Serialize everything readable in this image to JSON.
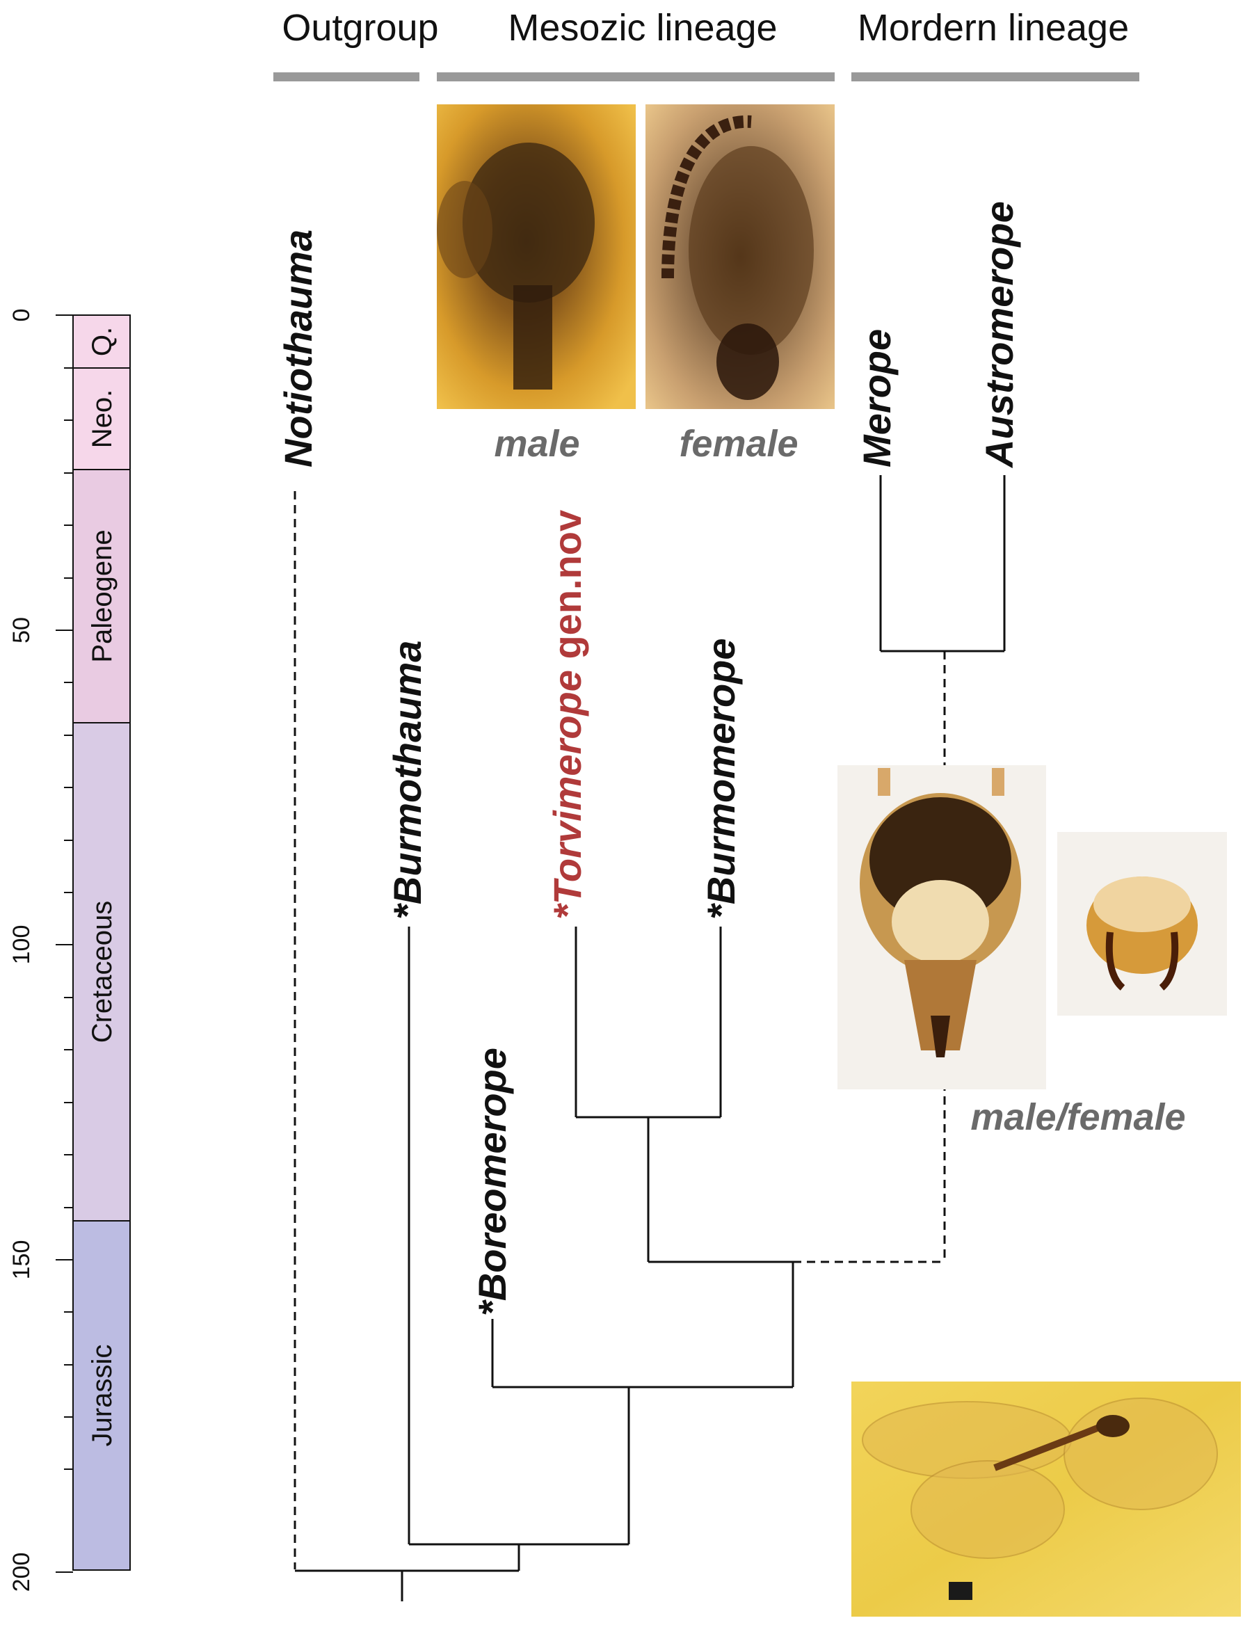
{
  "headers": {
    "outgroup": "Outgroup",
    "mesozoic": "Mesozic lineage",
    "modern": "Mordern lineage"
  },
  "timescale": {
    "ticks": [
      "0",
      "50",
      "100",
      "150",
      "200"
    ],
    "periods": [
      "Q.",
      "Neo.",
      "Paleogene",
      "Cretaceous",
      "Jurassic"
    ],
    "colors": {
      "quaternary": "#f6d7ea",
      "neogene": "#f6d7ea",
      "paleogene": "#e9cbe2",
      "cretaceous": "#d9cbe5",
      "jurassic": "#bcbce2"
    }
  },
  "taxa": {
    "notiothauma": "Notiothauma",
    "burmothauma": "*Burmothauma",
    "boreomerope": "*Boreomerope",
    "torvimerope_italic": "*Torvimerope",
    "torvimerope_suffix": " gen.nov",
    "burmomerope": "*Burmomerope",
    "merope": "Merope",
    "austromerope": "Austromerope"
  },
  "captions": {
    "male": "male",
    "female": "female",
    "male_female": "male/female"
  },
  "colors": {
    "header_bar": "#999999",
    "new_genus": "#b03a3a",
    "caption": "#6a6a6a",
    "amber": "#e8a830"
  },
  "photos": [
    "amber-male-head-photo",
    "amber-female-head-photo",
    "modern-head-photo",
    "modern-genitalia-photo",
    "amber-whole-specimen-photo"
  ]
}
